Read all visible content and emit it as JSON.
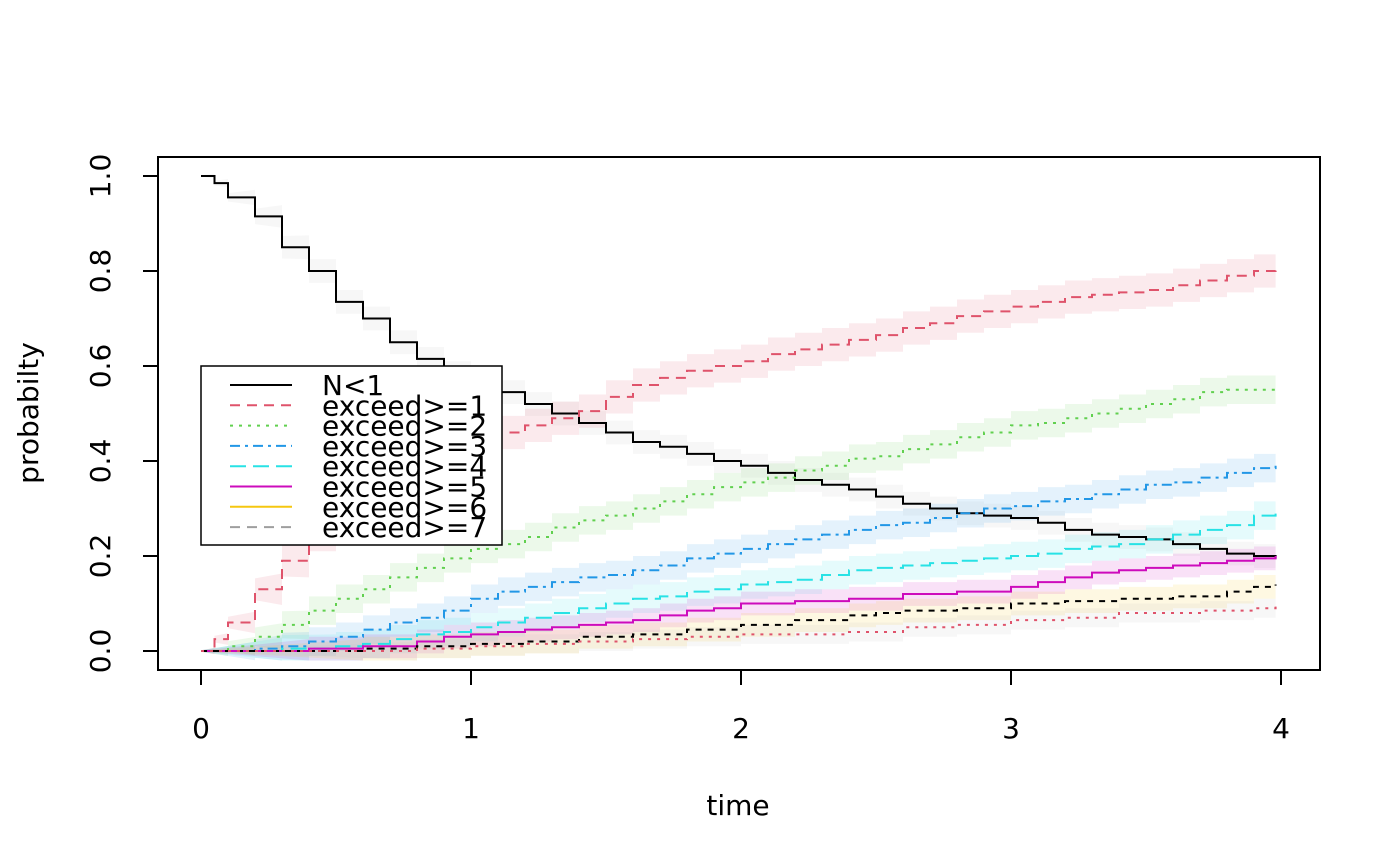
{
  "chart_data": {
    "type": "line",
    "title": "",
    "xlabel": "time",
    "ylabel": "probabilty",
    "xlim": [
      0,
      4
    ],
    "ylim": [
      0,
      1
    ],
    "x_ticks": [
      "0",
      "1",
      "2",
      "3",
      "4"
    ],
    "y_ticks": [
      "0.0",
      "0.2",
      "0.4",
      "0.6",
      "0.8",
      "1.0"
    ],
    "legend_position": "left",
    "series": [
      {
        "name": "N<1",
        "color": "#000000",
        "band_color": "#bebebe",
        "dash": "none",
        "band": 0.025,
        "points": [
          [
            0,
            1.0
          ],
          [
            0.05,
            0.985
          ],
          [
            0.1,
            0.955
          ],
          [
            0.2,
            0.915
          ],
          [
            0.3,
            0.85
          ],
          [
            0.4,
            0.8
          ],
          [
            0.5,
            0.735
          ],
          [
            0.6,
            0.7
          ],
          [
            0.7,
            0.65
          ],
          [
            0.8,
            0.615
          ],
          [
            0.9,
            0.585
          ],
          [
            1.0,
            0.56
          ],
          [
            1.1,
            0.545
          ],
          [
            1.2,
            0.52
          ],
          [
            1.3,
            0.5
          ],
          [
            1.4,
            0.48
          ],
          [
            1.5,
            0.46
          ],
          [
            1.6,
            0.44
          ],
          [
            1.7,
            0.43
          ],
          [
            1.8,
            0.415
          ],
          [
            1.9,
            0.4
          ],
          [
            2.0,
            0.39
          ],
          [
            2.1,
            0.375
          ],
          [
            2.2,
            0.36
          ],
          [
            2.3,
            0.35
          ],
          [
            2.4,
            0.34
          ],
          [
            2.5,
            0.325
          ],
          [
            2.6,
            0.31
          ],
          [
            2.7,
            0.3
          ],
          [
            2.8,
            0.29
          ],
          [
            2.9,
            0.285
          ],
          [
            3.0,
            0.28
          ],
          [
            3.1,
            0.27
          ],
          [
            3.2,
            0.255
          ],
          [
            3.3,
            0.245
          ],
          [
            3.4,
            0.24
          ],
          [
            3.5,
            0.235
          ],
          [
            3.6,
            0.225
          ],
          [
            3.7,
            0.215
          ],
          [
            3.8,
            0.205
          ],
          [
            3.9,
            0.2
          ],
          [
            3.98,
            0.195
          ]
        ]
      },
      {
        "name": "exceed>=1",
        "color": "#df536b",
        "band_color": "#df536b",
        "dash": "10,7",
        "band": 0.035,
        "points": [
          [
            0,
            0.0
          ],
          [
            0.05,
            0.025
          ],
          [
            0.1,
            0.06
          ],
          [
            0.2,
            0.13
          ],
          [
            0.3,
            0.19
          ],
          [
            0.4,
            0.245
          ],
          [
            0.5,
            0.29
          ],
          [
            0.6,
            0.325
          ],
          [
            0.7,
            0.36
          ],
          [
            0.8,
            0.39
          ],
          [
            0.9,
            0.415
          ],
          [
            1.0,
            0.44
          ],
          [
            1.1,
            0.46
          ],
          [
            1.2,
            0.475
          ],
          [
            1.3,
            0.49
          ],
          [
            1.4,
            0.505
          ],
          [
            1.5,
            0.535
          ],
          [
            1.6,
            0.56
          ],
          [
            1.7,
            0.575
          ],
          [
            1.8,
            0.59
          ],
          [
            1.9,
            0.6
          ],
          [
            2.0,
            0.61
          ],
          [
            2.1,
            0.625
          ],
          [
            2.2,
            0.635
          ],
          [
            2.3,
            0.645
          ],
          [
            2.4,
            0.655
          ],
          [
            2.5,
            0.665
          ],
          [
            2.6,
            0.68
          ],
          [
            2.7,
            0.69
          ],
          [
            2.8,
            0.705
          ],
          [
            2.9,
            0.715
          ],
          [
            3.0,
            0.725
          ],
          [
            3.1,
            0.735
          ],
          [
            3.2,
            0.745
          ],
          [
            3.3,
            0.75
          ],
          [
            3.4,
            0.755
          ],
          [
            3.5,
            0.76
          ],
          [
            3.6,
            0.77
          ],
          [
            3.7,
            0.78
          ],
          [
            3.8,
            0.79
          ],
          [
            3.9,
            0.8
          ],
          [
            3.98,
            0.805
          ]
        ]
      },
      {
        "name": "exceed>=2",
        "color": "#61d04f",
        "band_color": "#61d04f",
        "dash": "3,6",
        "band": 0.03,
        "points": [
          [
            0,
            0.0
          ],
          [
            0.1,
            0.01
          ],
          [
            0.2,
            0.03
          ],
          [
            0.3,
            0.055
          ],
          [
            0.4,
            0.085
          ],
          [
            0.5,
            0.11
          ],
          [
            0.6,
            0.13
          ],
          [
            0.7,
            0.155
          ],
          [
            0.8,
            0.175
          ],
          [
            0.9,
            0.195
          ],
          [
            1.0,
            0.215
          ],
          [
            1.1,
            0.225
          ],
          [
            1.2,
            0.24
          ],
          [
            1.3,
            0.26
          ],
          [
            1.4,
            0.275
          ],
          [
            1.5,
            0.285
          ],
          [
            1.6,
            0.3
          ],
          [
            1.7,
            0.315
          ],
          [
            1.8,
            0.33
          ],
          [
            1.9,
            0.345
          ],
          [
            2.0,
            0.355
          ],
          [
            2.1,
            0.365
          ],
          [
            2.2,
            0.38
          ],
          [
            2.3,
            0.39
          ],
          [
            2.4,
            0.405
          ],
          [
            2.5,
            0.41
          ],
          [
            2.6,
            0.425
          ],
          [
            2.7,
            0.435
          ],
          [
            2.8,
            0.45
          ],
          [
            2.9,
            0.46
          ],
          [
            3.0,
            0.475
          ],
          [
            3.1,
            0.48
          ],
          [
            3.2,
            0.49
          ],
          [
            3.3,
            0.5
          ],
          [
            3.4,
            0.51
          ],
          [
            3.5,
            0.52
          ],
          [
            3.6,
            0.53
          ],
          [
            3.7,
            0.545
          ],
          [
            3.8,
            0.55
          ],
          [
            3.9,
            0.55
          ],
          [
            3.98,
            0.55
          ]
        ]
      },
      {
        "name": "exceed>=3",
        "color": "#2297e6",
        "band_color": "#2297e6",
        "dash": "10,5,3,5",
        "band": 0.03,
        "points": [
          [
            0,
            0.0
          ],
          [
            0.2,
            0.005
          ],
          [
            0.3,
            0.01
          ],
          [
            0.4,
            0.02
          ],
          [
            0.5,
            0.03
          ],
          [
            0.6,
            0.045
          ],
          [
            0.7,
            0.06
          ],
          [
            0.8,
            0.07
          ],
          [
            0.9,
            0.085
          ],
          [
            1.0,
            0.11
          ],
          [
            1.1,
            0.125
          ],
          [
            1.2,
            0.135
          ],
          [
            1.3,
            0.145
          ],
          [
            1.4,
            0.155
          ],
          [
            1.5,
            0.16
          ],
          [
            1.6,
            0.17
          ],
          [
            1.7,
            0.18
          ],
          [
            1.8,
            0.195
          ],
          [
            1.9,
            0.205
          ],
          [
            2.0,
            0.215
          ],
          [
            2.1,
            0.225
          ],
          [
            2.2,
            0.235
          ],
          [
            2.3,
            0.245
          ],
          [
            2.4,
            0.255
          ],
          [
            2.5,
            0.265
          ],
          [
            2.6,
            0.27
          ],
          [
            2.7,
            0.28
          ],
          [
            2.8,
            0.29
          ],
          [
            2.9,
            0.3
          ],
          [
            3.0,
            0.305
          ],
          [
            3.1,
            0.315
          ],
          [
            3.2,
            0.32
          ],
          [
            3.3,
            0.33
          ],
          [
            3.4,
            0.34
          ],
          [
            3.5,
            0.35
          ],
          [
            3.6,
            0.355
          ],
          [
            3.7,
            0.365
          ],
          [
            3.8,
            0.375
          ],
          [
            3.9,
            0.385
          ],
          [
            3.98,
            0.39
          ]
        ]
      },
      {
        "name": "exceed>=4",
        "color": "#28e2e5",
        "band_color": "#28e2e5",
        "dash": "16,7",
        "band": 0.03,
        "points": [
          [
            0,
            0.0
          ],
          [
            0.3,
            0.005
          ],
          [
            0.5,
            0.01
          ],
          [
            0.6,
            0.015
          ],
          [
            0.7,
            0.025
          ],
          [
            0.8,
            0.035
          ],
          [
            0.9,
            0.04
          ],
          [
            1.0,
            0.05
          ],
          [
            1.1,
            0.06
          ],
          [
            1.2,
            0.07
          ],
          [
            1.3,
            0.08
          ],
          [
            1.4,
            0.09
          ],
          [
            1.5,
            0.1
          ],
          [
            1.6,
            0.11
          ],
          [
            1.7,
            0.115
          ],
          [
            1.8,
            0.125
          ],
          [
            1.9,
            0.13
          ],
          [
            2.0,
            0.14
          ],
          [
            2.1,
            0.145
          ],
          [
            2.2,
            0.15
          ],
          [
            2.3,
            0.16
          ],
          [
            2.4,
            0.17
          ],
          [
            2.5,
            0.175
          ],
          [
            2.6,
            0.18
          ],
          [
            2.7,
            0.185
          ],
          [
            2.8,
            0.19
          ],
          [
            2.9,
            0.195
          ],
          [
            3.0,
            0.2
          ],
          [
            3.1,
            0.205
          ],
          [
            3.2,
            0.215
          ],
          [
            3.3,
            0.22
          ],
          [
            3.4,
            0.225
          ],
          [
            3.5,
            0.235
          ],
          [
            3.6,
            0.245
          ],
          [
            3.7,
            0.255
          ],
          [
            3.8,
            0.265
          ],
          [
            3.9,
            0.285
          ],
          [
            3.98,
            0.3
          ]
        ]
      },
      {
        "name": "exceed>=5",
        "color": "#cd0bbc",
        "band_color": "#cd0bbc",
        "dash": "none",
        "band": 0.025,
        "points": [
          [
            0,
            0.0
          ],
          [
            0.4,
            0.005
          ],
          [
            0.6,
            0.01
          ],
          [
            0.8,
            0.02
          ],
          [
            0.9,
            0.03
          ],
          [
            1.0,
            0.035
          ],
          [
            1.1,
            0.04
          ],
          [
            1.2,
            0.045
          ],
          [
            1.3,
            0.05
          ],
          [
            1.4,
            0.055
          ],
          [
            1.5,
            0.06
          ],
          [
            1.6,
            0.065
          ],
          [
            1.7,
            0.075
          ],
          [
            1.8,
            0.085
          ],
          [
            1.9,
            0.09
          ],
          [
            2.0,
            0.1
          ],
          [
            2.2,
            0.105
          ],
          [
            2.4,
            0.11
          ],
          [
            2.6,
            0.12
          ],
          [
            2.8,
            0.125
          ],
          [
            3.0,
            0.135
          ],
          [
            3.1,
            0.145
          ],
          [
            3.2,
            0.155
          ],
          [
            3.3,
            0.165
          ],
          [
            3.4,
            0.17
          ],
          [
            3.5,
            0.175
          ],
          [
            3.6,
            0.18
          ],
          [
            3.7,
            0.185
          ],
          [
            3.8,
            0.19
          ],
          [
            3.9,
            0.195
          ],
          [
            3.98,
            0.2
          ]
        ]
      },
      {
        "name": "exceed>=6",
        "color": "#f5c710",
        "band_color": "#f5c710",
        "dash": "none",
        "band": 0.025,
        "points": []
      },
      {
        "name": "exceed>=7",
        "color": "#9e9e9e",
        "band_color": "#9e9e9e",
        "dash": "10,7",
        "band": 0.02,
        "points": []
      },
      {
        "name": "",
        "color": "#000000",
        "band_color": "#f5c710",
        "dash": "6,6",
        "band": 0.025,
        "legend": false,
        "points": [
          [
            0,
            0.0
          ],
          [
            0.6,
            0.005
          ],
          [
            0.8,
            0.01
          ],
          [
            1.0,
            0.015
          ],
          [
            1.2,
            0.02
          ],
          [
            1.4,
            0.03
          ],
          [
            1.6,
            0.035
          ],
          [
            1.8,
            0.045
          ],
          [
            2.0,
            0.055
          ],
          [
            2.2,
            0.065
          ],
          [
            2.4,
            0.075
          ],
          [
            2.5,
            0.08
          ],
          [
            2.6,
            0.085
          ],
          [
            2.8,
            0.09
          ],
          [
            3.0,
            0.1
          ],
          [
            3.2,
            0.105
          ],
          [
            3.4,
            0.11
          ],
          [
            3.6,
            0.115
          ],
          [
            3.8,
            0.125
          ],
          [
            3.9,
            0.135
          ],
          [
            3.98,
            0.14
          ]
        ]
      },
      {
        "name": "",
        "color": "#df536b",
        "band_color": "#bebebe",
        "dash": "3,6",
        "band": 0.02,
        "legend": false,
        "points": [
          [
            0,
            0.0
          ],
          [
            0.8,
            0.005
          ],
          [
            1.0,
            0.01
          ],
          [
            1.2,
            0.015
          ],
          [
            1.4,
            0.02
          ],
          [
            1.6,
            0.025
          ],
          [
            1.8,
            0.03
          ],
          [
            2.0,
            0.035
          ],
          [
            2.4,
            0.04
          ],
          [
            2.6,
            0.05
          ],
          [
            2.8,
            0.055
          ],
          [
            3.0,
            0.065
          ],
          [
            3.2,
            0.07
          ],
          [
            3.4,
            0.08
          ],
          [
            3.7,
            0.085
          ],
          [
            3.9,
            0.09
          ],
          [
            3.98,
            0.1
          ]
        ]
      }
    ]
  }
}
